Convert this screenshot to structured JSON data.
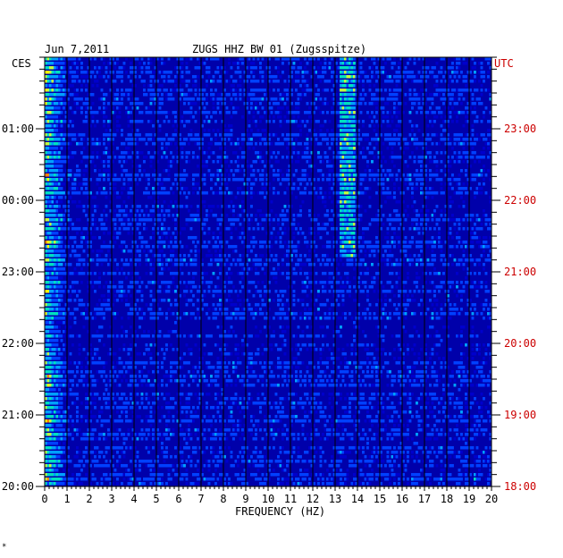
{
  "header": {
    "date": "Jun 7,2011",
    "station": "ZUGS HHZ BW 01 (Zugsspitze)",
    "left_zone": "CES",
    "right_zone": "UTC"
  },
  "footer_mark": "*",
  "chart_data": {
    "type": "heatmap",
    "title": "ZUGS HHZ BW 01 (Zugsspitze)",
    "date": "Jun 7,2011",
    "xlabel": "FREQUENCY (HZ)",
    "xlim": [
      0,
      20
    ],
    "x_ticks": [
      "0",
      "1",
      "2",
      "3",
      "4",
      "5",
      "6",
      "7",
      "8",
      "9",
      "10",
      "11",
      "12",
      "13",
      "14",
      "15",
      "16",
      "17",
      "18",
      "19",
      "20"
    ],
    "left_axis_label": "CES",
    "left_ticks": [
      "01:00",
      "00:00",
      "23:00",
      "22:00",
      "21:00",
      "20:00"
    ],
    "right_axis_label": "UTC",
    "right_ticks": [
      "23:00",
      "22:00",
      "21:00",
      "20:00",
      "19:00",
      "18:00"
    ],
    "grid": true,
    "colormap": [
      "#0000cc",
      "#0040ff",
      "#00a0ff",
      "#00e0c0",
      "#c0ff40",
      "#ffff00",
      "#ff8000",
      "#ff0000"
    ],
    "background_color": "#0000aa"
  }
}
